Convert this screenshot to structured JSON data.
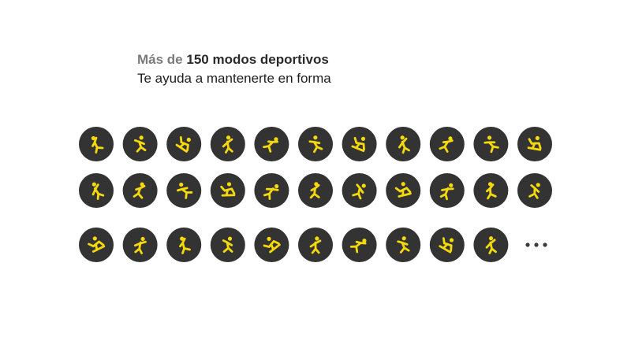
{
  "header": {
    "title_prefix": "Más de",
    "title_emphasis": "150 modos deportivos",
    "subtitle": "Te ayuda a mantenerte en forma"
  }
}
